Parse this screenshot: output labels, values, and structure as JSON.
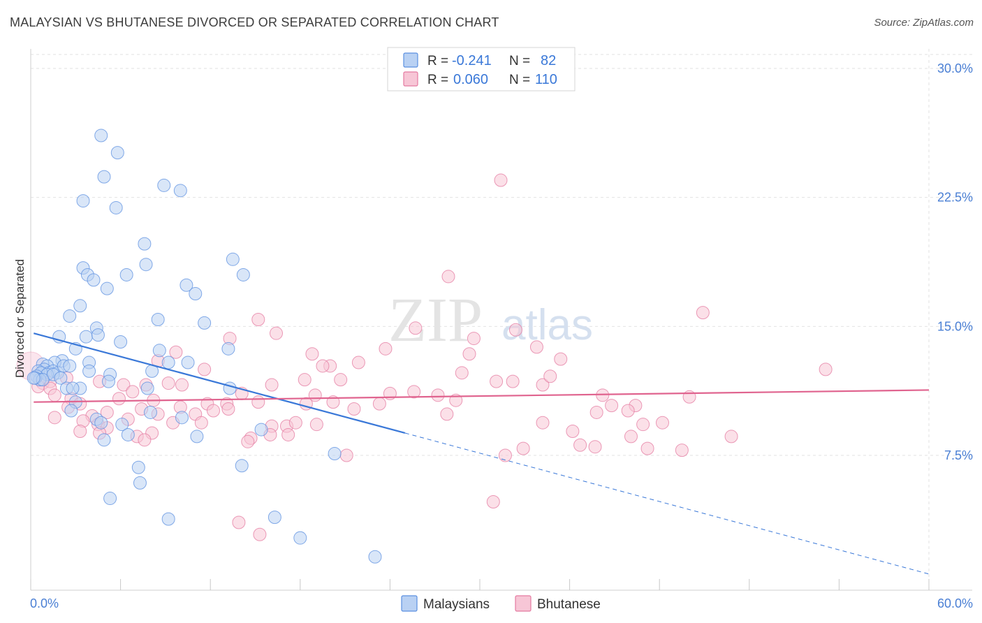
{
  "title": "MALAYSIAN VS BHUTANESE DIVORCED OR SEPARATED CORRELATION CHART",
  "source": "Source: ZipAtlas.com",
  "watermark": {
    "zip": "ZIP",
    "atlas": "atlas"
  },
  "stats": [
    {
      "r_label": "R =",
      "r_value": "-0.241",
      "n_label": "N =",
      "n_value": "82",
      "color": "#5b8fe0",
      "fill": "#b9d1f3"
    },
    {
      "r_label": "R =",
      "r_value": "0.060",
      "n_label": "N =",
      "n_value": "110",
      "color": "#e47aa0",
      "fill": "#f7c6d6"
    }
  ],
  "chart_data": {
    "type": "scatter",
    "title": "MALAYSIAN VS BHUTANESE DIVORCED OR SEPARATED CORRELATION CHART",
    "xlabel": "",
    "ylabel": "Divorced or Separated",
    "xlim": [
      0,
      60
    ],
    "ylim": [
      0,
      32
    ],
    "x_tick_labels": [
      "0.0%",
      "60.0%"
    ],
    "y_ticks": [
      7.5,
      15.0,
      22.5,
      30.0
    ],
    "y_tick_labels": [
      "7.5%",
      "15.0%",
      "22.5%",
      "30.0%"
    ],
    "grid": true,
    "legend_position": "bottom-center",
    "series": [
      {
        "name": "Malaysians",
        "color": "#5b8fe0",
        "fill": "#b9d1f3",
        "trend": {
          "x0": 0.2,
          "y0": 14.6,
          "x1": 25.0,
          "y1": 8.8,
          "dash_to_x": 60.0,
          "dash_to_y": 0.6
        },
        "points": [
          [
            4.7,
            26.1
          ],
          [
            5.8,
            25.1
          ],
          [
            4.9,
            23.7
          ],
          [
            8.9,
            23.2
          ],
          [
            10.0,
            22.9
          ],
          [
            3.5,
            22.3
          ],
          [
            5.7,
            21.9
          ],
          [
            7.6,
            19.8
          ],
          [
            13.5,
            18.9
          ],
          [
            3.5,
            18.4
          ],
          [
            7.7,
            18.6
          ],
          [
            3.8,
            18.0
          ],
          [
            6.4,
            18.0
          ],
          [
            14.2,
            18.0
          ],
          [
            4.2,
            17.7
          ],
          [
            5.1,
            17.2
          ],
          [
            10.4,
            17.4
          ],
          [
            11.0,
            16.9
          ],
          [
            3.3,
            16.2
          ],
          [
            2.6,
            15.6
          ],
          [
            8.5,
            15.4
          ],
          [
            11.6,
            15.2
          ],
          [
            4.4,
            14.9
          ],
          [
            1.9,
            14.4
          ],
          [
            3.7,
            14.4
          ],
          [
            4.5,
            14.5
          ],
          [
            6.0,
            14.1
          ],
          [
            3.0,
            13.7
          ],
          [
            8.6,
            13.6
          ],
          [
            13.2,
            13.7
          ],
          [
            2.1,
            13.0
          ],
          [
            1.6,
            12.9
          ],
          [
            0.8,
            12.8
          ],
          [
            9.2,
            12.9
          ],
          [
            10.5,
            12.9
          ],
          [
            3.9,
            12.9
          ],
          [
            1.1,
            12.7
          ],
          [
            0.9,
            12.5
          ],
          [
            1.2,
            12.3
          ],
          [
            1.5,
            12.4
          ],
          [
            1.8,
            12.3
          ],
          [
            2.2,
            12.7
          ],
          [
            2.6,
            12.7
          ],
          [
            3.9,
            12.4
          ],
          [
            0.5,
            12.4
          ],
          [
            0.7,
            12.3
          ],
          [
            1.1,
            12.2
          ],
          [
            1.5,
            12.2
          ],
          [
            2.0,
            12.0
          ],
          [
            0.4,
            12.1
          ],
          [
            0.6,
            11.9
          ],
          [
            0.3,
            12.0
          ],
          [
            0.8,
            11.9
          ],
          [
            5.3,
            12.2
          ],
          [
            8.1,
            12.4
          ],
          [
            5.2,
            11.8
          ],
          [
            2.4,
            11.4
          ],
          [
            3.3,
            11.4
          ],
          [
            7.8,
            11.4
          ],
          [
            13.3,
            11.4
          ],
          [
            3.0,
            10.6
          ],
          [
            2.7,
            10.1
          ],
          [
            8.0,
            10.0
          ],
          [
            4.4,
            9.6
          ],
          [
            4.7,
            9.4
          ],
          [
            6.1,
            9.3
          ],
          [
            10.1,
            9.7
          ],
          [
            15.4,
            9.0
          ],
          [
            6.5,
            8.7
          ],
          [
            11.1,
            8.6
          ],
          [
            4.9,
            8.4
          ],
          [
            20.3,
            7.6
          ],
          [
            7.2,
            6.8
          ],
          [
            14.1,
            6.9
          ],
          [
            7.3,
            5.9
          ],
          [
            5.3,
            5.0
          ],
          [
            9.2,
            3.8
          ],
          [
            16.3,
            3.9
          ],
          [
            18.0,
            2.7
          ],
          [
            23.0,
            1.6
          ],
          [
            0.2,
            12.0
          ],
          [
            2.8,
            11.4
          ]
        ]
      },
      {
        "name": "Bhutanese",
        "color": "#e47aa0",
        "fill": "#f7c6d6",
        "trend": {
          "x0": 0.2,
          "y0": 10.6,
          "x1": 60.0,
          "y1": 11.3
        },
        "points": [
          [
            31.4,
            23.5
          ],
          [
            27.9,
            17.9
          ],
          [
            44.9,
            15.8
          ],
          [
            15.2,
            15.4
          ],
          [
            16.4,
            14.6
          ],
          [
            25.7,
            14.9
          ],
          [
            32.4,
            14.8
          ],
          [
            29.6,
            14.3
          ],
          [
            9.7,
            13.5
          ],
          [
            13.3,
            14.3
          ],
          [
            23.7,
            13.7
          ],
          [
            29.3,
            13.4
          ],
          [
            18.8,
            13.4
          ],
          [
            33.8,
            13.8
          ],
          [
            8.5,
            13.0
          ],
          [
            20.0,
            12.7
          ],
          [
            21.9,
            12.9
          ],
          [
            35.4,
            13.1
          ],
          [
            11.6,
            12.5
          ],
          [
            19.5,
            12.7
          ],
          [
            28.8,
            12.3
          ],
          [
            53.1,
            12.5
          ],
          [
            2.4,
            12.0
          ],
          [
            4.6,
            11.8
          ],
          [
            0.8,
            11.7
          ],
          [
            1.3,
            11.8
          ],
          [
            0.5,
            11.5
          ],
          [
            1.3,
            11.4
          ],
          [
            6.2,
            11.6
          ],
          [
            7.7,
            11.6
          ],
          [
            9.2,
            11.7
          ],
          [
            10.1,
            11.6
          ],
          [
            16.1,
            11.6
          ],
          [
            18.3,
            11.9
          ],
          [
            20.7,
            11.9
          ],
          [
            31.1,
            11.8
          ],
          [
            32.2,
            11.8
          ],
          [
            34.2,
            11.6
          ],
          [
            6.8,
            11.2
          ],
          [
            14.1,
            11.1
          ],
          [
            19.0,
            11.0
          ],
          [
            24.0,
            11.1
          ],
          [
            25.6,
            11.2
          ],
          [
            27.2,
            11.0
          ],
          [
            38.2,
            11.0
          ],
          [
            44.0,
            10.9
          ],
          [
            1.6,
            11.0
          ],
          [
            2.7,
            10.8
          ],
          [
            5.9,
            10.8
          ],
          [
            8.2,
            10.7
          ],
          [
            3.3,
            10.5
          ],
          [
            11.8,
            10.5
          ],
          [
            13.1,
            10.5
          ],
          [
            15.2,
            10.6
          ],
          [
            18.4,
            10.5
          ],
          [
            20.2,
            10.6
          ],
          [
            23.3,
            10.5
          ],
          [
            28.4,
            10.7
          ],
          [
            38.8,
            10.4
          ],
          [
            40.4,
            10.4
          ],
          [
            2.5,
            10.3
          ],
          [
            5.1,
            10.0
          ],
          [
            7.4,
            10.2
          ],
          [
            10.0,
            10.3
          ],
          [
            12.2,
            10.1
          ],
          [
            13.2,
            10.2
          ],
          [
            21.6,
            10.2
          ],
          [
            27.8,
            9.9
          ],
          [
            37.8,
            10.0
          ],
          [
            39.9,
            10.1
          ],
          [
            1.6,
            9.7
          ],
          [
            4.1,
            9.8
          ],
          [
            6.5,
            9.6
          ],
          [
            8.5,
            9.9
          ],
          [
            11.0,
            9.9
          ],
          [
            3.5,
            9.5
          ],
          [
            4.5,
            9.3
          ],
          [
            5.1,
            9.1
          ],
          [
            9.5,
            9.4
          ],
          [
            11.4,
            9.4
          ],
          [
            16.1,
            9.2
          ],
          [
            17.1,
            9.2
          ],
          [
            17.7,
            9.4
          ],
          [
            19.1,
            9.3
          ],
          [
            34.2,
            9.4
          ],
          [
            40.9,
            9.3
          ],
          [
            42.2,
            9.4
          ],
          [
            3.3,
            8.9
          ],
          [
            4.6,
            8.8
          ],
          [
            7.1,
            8.6
          ],
          [
            8.1,
            8.8
          ],
          [
            14.7,
            8.5
          ],
          [
            16.0,
            8.7
          ],
          [
            17.2,
            8.7
          ],
          [
            36.2,
            8.9
          ],
          [
            40.1,
            8.6
          ],
          [
            46.8,
            8.6
          ],
          [
            7.6,
            8.4
          ],
          [
            14.5,
            8.3
          ],
          [
            36.7,
            8.1
          ],
          [
            37.7,
            8.0
          ],
          [
            41.2,
            7.9
          ],
          [
            32.9,
            7.9
          ],
          [
            31.7,
            7.5
          ],
          [
            43.5,
            7.8
          ],
          [
            21.1,
            7.5
          ],
          [
            30.9,
            4.8
          ],
          [
            13.9,
            3.6
          ],
          [
            15.3,
            2.9
          ],
          [
            34.7,
            12.1
          ]
        ]
      }
    ]
  }
}
